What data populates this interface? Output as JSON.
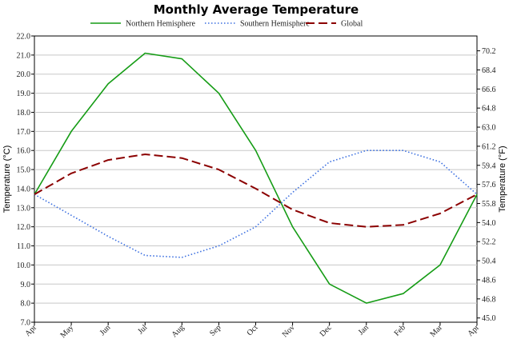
{
  "chart_data": {
    "type": "line",
    "title": "Monthly Average Temperature",
    "xlabel": "",
    "ylabel_left": "Temperature (°C)",
    "ylabel_right": "Temperature (°F)",
    "categories": [
      "Apr",
      "May",
      "Jun",
      "Jul",
      "Aug",
      "Sep",
      "Oct",
      "Nov",
      "Dec",
      "Jan",
      "Feb",
      "Mar",
      "Apr"
    ],
    "ylim": [
      7.0,
      22.0
    ],
    "y_ticks": [
      "22.0",
      "21.0",
      "20.0",
      "19.0",
      "18.0",
      "17.0",
      "16.0",
      "15.0",
      "14.0",
      "13.0",
      "12.0",
      "11.0",
      "10.0",
      "9.0",
      "8.0",
      "7.0"
    ],
    "y2_ticks": [
      "70.2",
      "68.4",
      "66.6",
      "64.8",
      "63.0",
      "61.2",
      "59.4",
      "57.6",
      "55.8",
      "54.0",
      "52.2",
      "50.4",
      "48.6",
      "46.8",
      "45.0"
    ],
    "grid": true,
    "legend": "top",
    "series": [
      {
        "name": "Northern Hemisphere",
        "color": "#159c15",
        "style": "solid",
        "values": [
          13.7,
          17.0,
          19.5,
          21.1,
          20.8,
          19.0,
          16.0,
          12.0,
          9.0,
          8.0,
          8.5,
          10.0,
          13.7
        ]
      },
      {
        "name": "Southern Hemisphere",
        "color": "#3b6fe0",
        "style": "dotted",
        "values": [
          13.7,
          12.6,
          11.5,
          10.5,
          10.4,
          11.0,
          12.0,
          13.8,
          15.4,
          16.0,
          16.0,
          15.4,
          13.7
        ]
      },
      {
        "name": "Global",
        "color": "#8b0000",
        "style": "dashed",
        "values": [
          13.7,
          14.8,
          15.5,
          15.8,
          15.6,
          15.0,
          14.0,
          12.9,
          12.2,
          12.0,
          12.1,
          12.7,
          13.7
        ]
      }
    ]
  }
}
